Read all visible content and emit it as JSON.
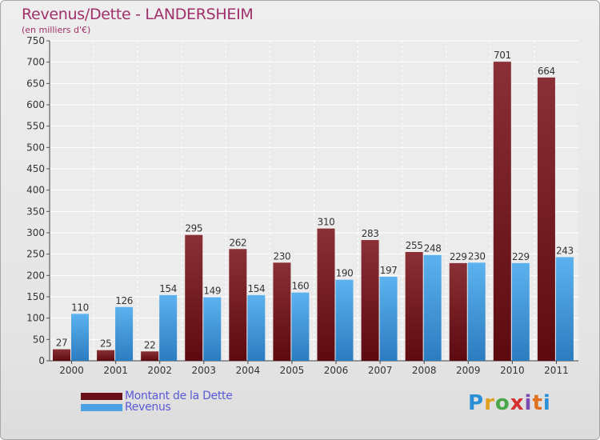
{
  "title": "Revenus/Dette - LANDERSHEIM",
  "subtitle": "(en milliers d'€)",
  "brand": "Proxiti",
  "chart_data": {
    "type": "bar",
    "title": "Revenus/Dette - LANDERSHEIM",
    "subtitle": "(en milliers d'€)",
    "categories": [
      "2000",
      "2001",
      "2002",
      "2003",
      "2004",
      "2005",
      "2006",
      "2007",
      "2008",
      "2009",
      "2010",
      "2011"
    ],
    "series": [
      {
        "name": "Montant de la Dette",
        "color": "#7a1e24",
        "values": [
          27,
          25,
          22,
          295,
          262,
          230,
          310,
          283,
          255,
          229,
          701,
          664
        ]
      },
      {
        "name": "Revenus",
        "color": "#4aa2e2",
        "values": [
          110,
          126,
          154,
          149,
          154,
          160,
          190,
          197,
          248,
          230,
          229,
          243
        ]
      }
    ],
    "ylim": [
      0,
      750
    ],
    "yticks": [
      0,
      50,
      100,
      150,
      200,
      250,
      300,
      350,
      400,
      450,
      500,
      550,
      600,
      650,
      700,
      750
    ],
    "grid": true,
    "legend": "bottom-left"
  }
}
